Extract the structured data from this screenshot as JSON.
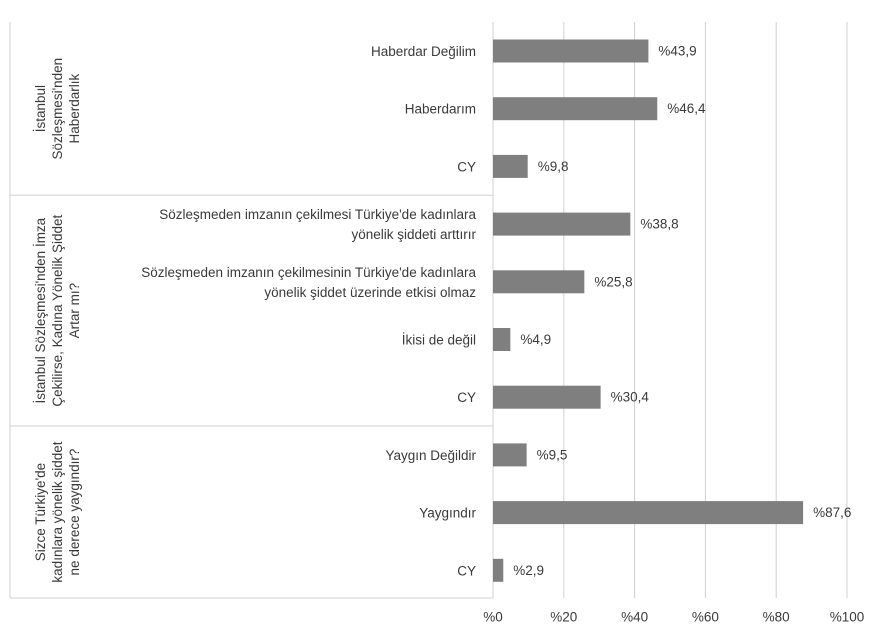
{
  "chart_data": {
    "type": "bar",
    "orientation": "horizontal",
    "xlim": [
      0,
      100
    ],
    "x_ticks": [
      "%0",
      "%20",
      "%40",
      "%60",
      "%80",
      "%100"
    ],
    "grid": true,
    "bar_color": "#7f7f7f",
    "value_prefix": "%",
    "decimal_separator": ",",
    "groups": [
      {
        "label": [
          "İstanbul",
          "Sözleşmesi'nden",
          "Haberdarlık"
        ],
        "items": [
          {
            "label": [
              "Haberdar Değilim"
            ],
            "value": 43.9
          },
          {
            "label": [
              "Haberdarım"
            ],
            "value": 46.4
          },
          {
            "label": [
              "CY"
            ],
            "value": 9.8
          }
        ]
      },
      {
        "label": [
          "İstanbul Sözleşmesi'nden İmza",
          "Çekilirse, Kadına Yönelik Şiddet",
          "Artar mı?"
        ],
        "items": [
          {
            "label": [
              "Sözleşmeden imzanın çekilmesi Türkiye'de kadınlara",
              "yönelik şiddeti arttırır"
            ],
            "value": 38.8
          },
          {
            "label": [
              "Sözleşmeden imzanın çekilmesinin Türkiye'de kadınlara",
              "yönelik şiddet üzerinde etkisi olmaz"
            ],
            "value": 25.8
          },
          {
            "label": [
              "İkisi de değil"
            ],
            "value": 4.9
          },
          {
            "label": [
              "CY"
            ],
            "value": 30.4
          }
        ]
      },
      {
        "label": [
          "Sizce Türkiye'de",
          "kadınlara yönelik şiddet",
          "ne derece yaygındır?"
        ],
        "items": [
          {
            "label": [
              "Yaygın Değildir"
            ],
            "value": 9.5
          },
          {
            "label": [
              "Yaygındır"
            ],
            "value": 87.6
          },
          {
            "label": [
              "CY"
            ],
            "value": 2.9
          }
        ]
      }
    ]
  }
}
